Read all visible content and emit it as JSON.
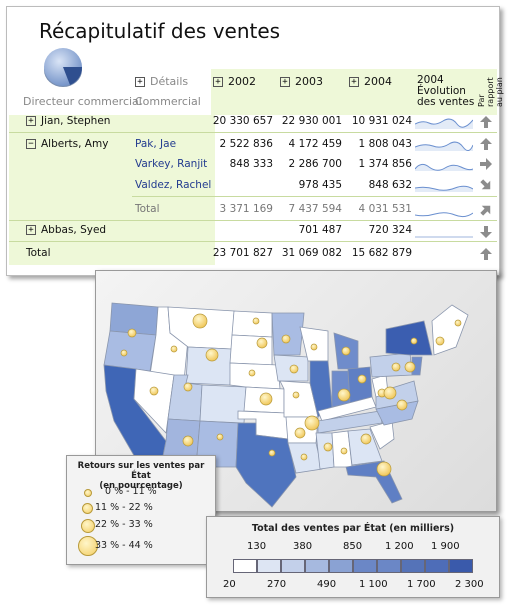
{
  "report": {
    "title": "Récapitulatif des ventes",
    "col_director": "Directeur commercial",
    "col_details": "Détails",
    "col_commercial": "Commercial",
    "years": [
      "2002",
      "2003",
      "2004"
    ],
    "trend_header": "2004 Évolution des ventes",
    "plan_header": "Par rapport au plan",
    "expand_plus": "+",
    "expand_minus": "−",
    "rows": [
      {
        "director": "Jian, Stephen",
        "commercial": "",
        "v2002": "20 330 657",
        "v2003": "22 930 001",
        "v2004": "10 931 024",
        "arrow": "up"
      },
      {
        "director": "Alberts, Amy",
        "commercial": "Pak, Jae",
        "v2002": "2 522 836",
        "v2003": "4 172 459",
        "v2004": "1 808 043",
        "arrow": "up"
      },
      {
        "director": "",
        "commercial": "Varkey, Ranjit",
        "v2002": "848 333",
        "v2003": "2 286 700",
        "v2004": "1 374 856",
        "arrow": "right"
      },
      {
        "director": "",
        "commercial": "Valdez, Rachel",
        "v2002": "",
        "v2003": "978 435",
        "v2004": "848 632",
        "arrow": "down-right"
      },
      {
        "director": "",
        "commercial": "Total",
        "v2002": "3 371 169",
        "v2003": "7 437 594",
        "v2004": "4 031 531",
        "arrow": "up-right"
      },
      {
        "director": "Abbas, Syed",
        "commercial": "",
        "v2002": "",
        "v2003": "701 487",
        "v2004": "720 324",
        "arrow": "down"
      },
      {
        "director": "Total",
        "commercial": "",
        "v2002": "23 701 827",
        "v2003": "31 069 082",
        "v2004": "15 682 879",
        "arrow": "up"
      }
    ]
  },
  "map": {
    "bubble_legend": {
      "title_line1": "Retours sur les ventes par État",
      "title_line2": "(en pourcentage)",
      "ranges": [
        "0 % - 11 %",
        "11 % - 22 %",
        "22 % - 33 %",
        "33 % - 44 %"
      ]
    },
    "color_legend": {
      "title": "Total des ventes par État (en milliers)",
      "top_labels": [
        "130",
        "380",
        "850",
        "1 200",
        "1 900"
      ],
      "bottom_labels": [
        "20",
        "270",
        "490",
        "1 100",
        "1 700",
        "2 300"
      ],
      "colors": [
        "#ffffff",
        "#dde5f3",
        "#c3d0ea",
        "#a6b9df",
        "#8aa2d3",
        "#6b87c6",
        "#4e6db8",
        "#3a5aab"
      ]
    }
  }
}
